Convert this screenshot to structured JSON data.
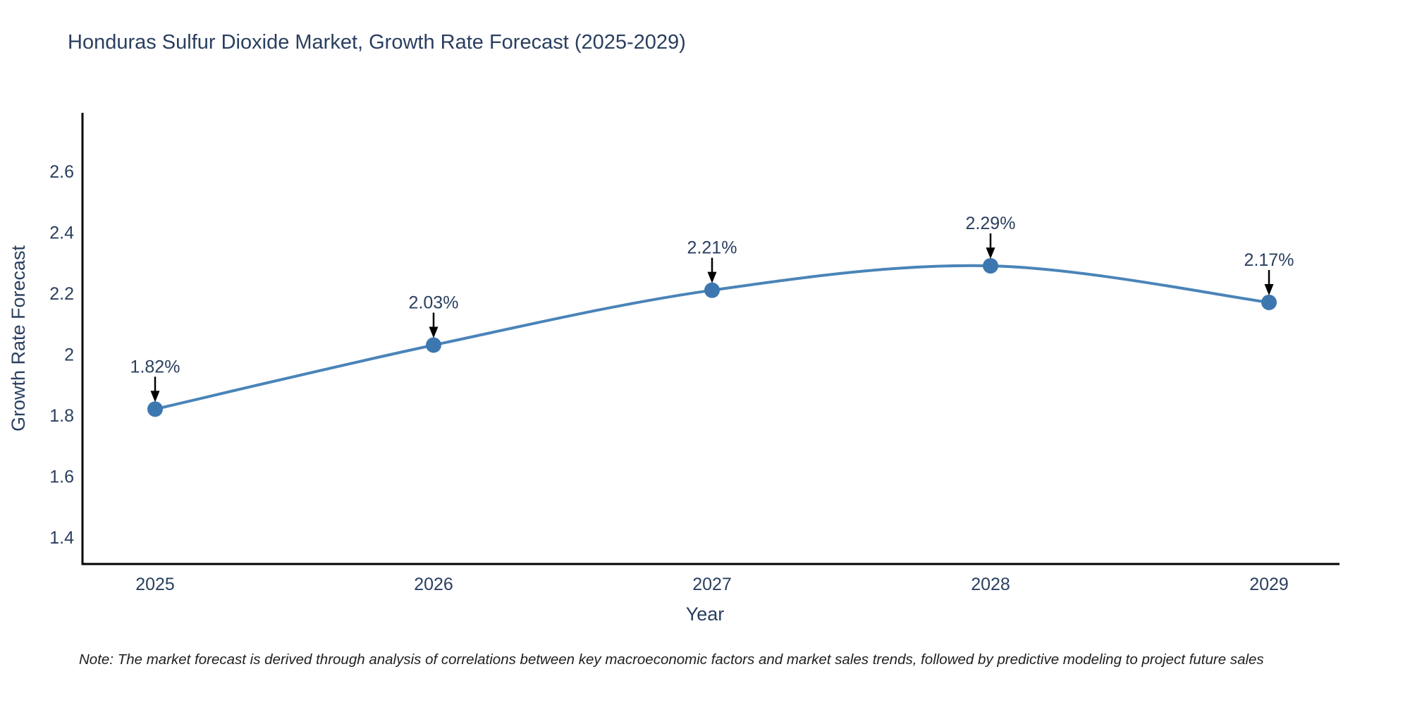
{
  "note": "Note: The market forecast is derived through analysis of correlations between key macroeconomic factors and market sales trends, followed by predictive modeling to project future sales",
  "chart_data": {
    "type": "line",
    "title": "Honduras Sulfur Dioxide Market, Growth Rate Forecast (2025-2029)",
    "xlabel": "Year",
    "ylabel": "Growth Rate Forecast",
    "categories": [
      "2025",
      "2026",
      "2027",
      "2028",
      "2029"
    ],
    "series": [
      {
        "name": "Growth Rate Forecast",
        "values": [
          1.82,
          2.03,
          2.21,
          2.29,
          2.17
        ],
        "point_labels": [
          "1.82%",
          "2.03%",
          "2.21%",
          "2.29%",
          "2.17%"
        ]
      }
    ],
    "y_ticks": [
      1.4,
      1.6,
      1.8,
      2,
      2.2,
      2.4,
      2.6
    ],
    "y_tick_labels": [
      "1.4",
      "1.6",
      "1.8",
      "2",
      "2.2",
      "2.4",
      "2.6"
    ],
    "ylim": [
      1.312,
      2.792
    ],
    "grid": false,
    "legend": "none",
    "line_shape": "spline",
    "annotation_style": "down-arrow",
    "colors": {
      "line": "#4a84b8",
      "marker": "#3d77b0",
      "arrow": "#000000",
      "axis": "#000000",
      "text": "#2a3f5f"
    }
  }
}
